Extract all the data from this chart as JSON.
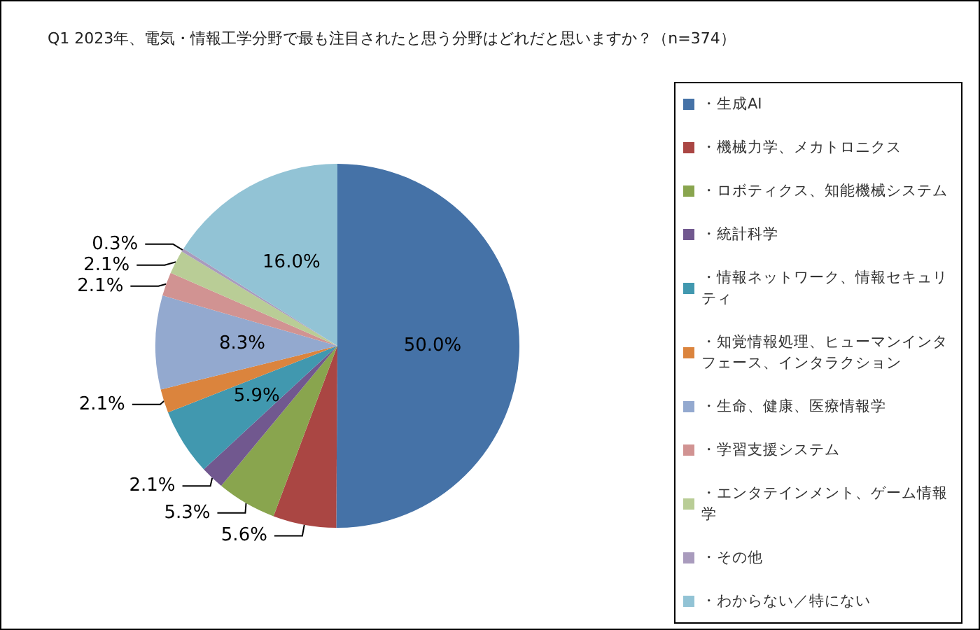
{
  "chart_data": {
    "type": "pie",
    "title": "Q1 2023年、電気・情報工学分野で最も注目されたと思う分野はどれだと思いますか？（n=374）",
    "categories": [
      "・生成AI",
      "・機械力学、メカトロニクス",
      "・ロボティクス、知能機械システム",
      "・統計科学",
      "・情報ネットワーク、情報セキュリティ",
      "・知覚情報処理、ヒューマンインタフェース、インタラクション",
      "・生命、健康、医療情報学",
      "・学習支援システム",
      "・エンタテインメント、ゲーム情報学",
      "・その他",
      "・わからない／特にない"
    ],
    "values": [
      50.0,
      5.6,
      5.3,
      2.1,
      5.9,
      2.1,
      8.3,
      2.1,
      2.1,
      0.3,
      16.0
    ],
    "value_labels": [
      "50.0%",
      "5.6%",
      "5.3%",
      "2.1%",
      "5.9%",
      "2.1%",
      "8.3%",
      "2.1%",
      "2.1%",
      "0.3%",
      "16.0%"
    ],
    "colors": [
      "#4572a7",
      "#aa4643",
      "#89a54e",
      "#71588f",
      "#4198af",
      "#db843d",
      "#93a9cf",
      "#d19392",
      "#b9cd96",
      "#a99bbd",
      "#92c3d5"
    ],
    "legend": "right"
  }
}
